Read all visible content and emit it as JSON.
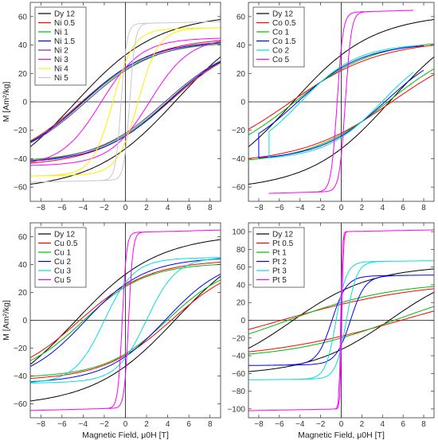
{
  "chart_data": [
    {
      "type": "line",
      "panel": "top-left",
      "xlabel": "",
      "ylabel": "M [Am²/kg]",
      "xlim": [
        -9,
        9
      ],
      "ylim": [
        -70,
        70
      ],
      "xticks": [
        -8,
        -6,
        -4,
        -2,
        0,
        2,
        4,
        6,
        8
      ],
      "yticks": [
        -60,
        -40,
        -20,
        0,
        20,
        40,
        60
      ],
      "legend_position": "top-left",
      "grid": false,
      "series": [
        {
          "name": "Dy 12",
          "color": "#000000",
          "Ms": 59,
          "Hmax": 9,
          "Hc": 4.8,
          "Mr": 33,
          "w": 0.9,
          "chi": 2.0
        },
        {
          "name": "Ni 0.5",
          "color": "#ff0000",
          "Ms": 44,
          "Hmax": 9,
          "Hc": 4.2,
          "Mr": 24,
          "w": 1.2,
          "chi": 1.0
        },
        {
          "name": "Ni 1",
          "color": "#00bb00",
          "Ms": 41,
          "Hmax": 9,
          "Hc": 4.0,
          "Mr": 23,
          "w": 1.2,
          "chi": 0.9
        },
        {
          "name": "Ni 1.5",
          "color": "#0000ff",
          "Ms": 42,
          "Hmax": 9,
          "Hc": 4.1,
          "Mr": 24,
          "w": 1.2,
          "chi": 1.0
        },
        {
          "name": "Ni 2",
          "color": "#7030a0",
          "Ms": 42,
          "Hmax": 9,
          "Hc": 3.8,
          "Mr": 22,
          "w": 1.2,
          "chi": 1.0
        },
        {
          "name": "Ni 3",
          "color": "#ff00ff",
          "Ms": 44,
          "Hmax": 9,
          "Hc": 2.3,
          "Mr": 24,
          "w": 1.0,
          "chi": 1.0
        },
        {
          "name": "Ni 4",
          "color": "#ffee00",
          "Ms": 51,
          "Hmax": 9,
          "Hc": 1.2,
          "Mr": 28,
          "w": 0.7,
          "chi": 1.2
        },
        {
          "name": "Ni 5",
          "color": "#c8c8c8",
          "Ms": 55,
          "Hmax": 9,
          "Hc": 0.4,
          "Mr": 35,
          "w": 0.4,
          "chi": 1.5
        }
      ]
    },
    {
      "type": "line",
      "panel": "top-right",
      "xlabel": "",
      "ylabel": "",
      "xlim": [
        -9,
        9
      ],
      "ylim": [
        -70,
        70
      ],
      "xticks": [
        -8,
        -6,
        -4,
        -2,
        0,
        2,
        4,
        6,
        8
      ],
      "yticks": [
        -60,
        -40,
        -20,
        0,
        20,
        40,
        60
      ],
      "legend_position": "top-left",
      "grid": false,
      "series": [
        {
          "name": "Dy 12",
          "color": "#000000",
          "Ms": 59,
          "Hmax": 9,
          "Hc": 4.8,
          "Mr": 33,
          "w": 0.9,
          "chi": 2.0
        },
        {
          "name": "Co 0.5",
          "color": "#ff0000",
          "Ms": 42,
          "Hmax": 9,
          "Hc": 5.0,
          "Mr": 22,
          "w": 1.4,
          "chi": 1.0
        },
        {
          "name": "Co 1",
          "color": "#00bb00",
          "Ms": 42,
          "Hmax": 9,
          "Hc": 4.6,
          "Mr": 23,
          "w": 1.2,
          "chi": 1.0
        },
        {
          "name": "Co 1.5",
          "color": "#0000ff",
          "Ms": 40,
          "Hmax": 8,
          "Hc": 4.3,
          "Mr": 24,
          "w": 1.1,
          "chi": 1.0
        },
        {
          "name": "Co 2",
          "color": "#00e0e0",
          "Ms": 40,
          "Hmax": 7,
          "Hc": 4.0,
          "Mr": 25,
          "w": 1.0,
          "chi": 1.0
        },
        {
          "name": "Co 5",
          "color": "#ff00ff",
          "Ms": 63,
          "Hmax": 7,
          "Hc": 0.4,
          "Mr": 38,
          "w": 0.35,
          "chi": 1.8
        }
      ]
    },
    {
      "type": "line",
      "panel": "bottom-left",
      "xlabel": "Magnetic Field, μ0H [T]",
      "ylabel": "M [Am²/kg]",
      "xlim": [
        -9,
        9
      ],
      "ylim": [
        -70,
        70
      ],
      "xticks": [
        -8,
        -6,
        -4,
        -2,
        0,
        2,
        4,
        6,
        8
      ],
      "yticks": [
        -60,
        -40,
        -20,
        0,
        20,
        40,
        60
      ],
      "legend_position": "top-left",
      "grid": false,
      "series": [
        {
          "name": "Dy 12",
          "color": "#000000",
          "Ms": 59,
          "Hmax": 9,
          "Hc": 4.8,
          "Mr": 33,
          "w": 0.9,
          "chi": 2.0
        },
        {
          "name": "Cu 0.5",
          "color": "#ff0000",
          "Ms": 42,
          "Hmax": 9,
          "Hc": 4.4,
          "Mr": 25,
          "w": 1.2,
          "chi": 1.0
        },
        {
          "name": "Cu 1",
          "color": "#00bb00",
          "Ms": 40,
          "Hmax": 9,
          "Hc": 4.0,
          "Mr": 24,
          "w": 1.2,
          "chi": 1.0
        },
        {
          "name": "Cu 2",
          "color": "#0000ff",
          "Ms": 44,
          "Hmax": 9,
          "Hc": 3.8,
          "Mr": 26,
          "w": 1.2,
          "chi": 1.0
        },
        {
          "name": "Cu 3",
          "color": "#00e0e0",
          "Ms": 44,
          "Hmax": 9,
          "Hc": 2.0,
          "Mr": 27,
          "w": 0.9,
          "chi": 1.1
        },
        {
          "name": "Cu 5",
          "color": "#ff00ff",
          "Ms": 63,
          "Hmax": 9,
          "Hc": 0.3,
          "Mr": 40,
          "w": 0.35,
          "chi": 1.8
        }
      ]
    },
    {
      "type": "line",
      "panel": "bottom-right",
      "xlabel": "Magnetic Field, μ0H [T]",
      "ylabel": "",
      "xlim": [
        -9,
        9
      ],
      "ylim": [
        -110,
        110
      ],
      "xticks": [
        -8,
        -6,
        -4,
        -2,
        0,
        2,
        4,
        6,
        8
      ],
      "yticks": [
        -100,
        -80,
        -60,
        -40,
        -20,
        0,
        20,
        40,
        60,
        80,
        100
      ],
      "legend_position": "top-left",
      "grid": false,
      "series": [
        {
          "name": "Dy 12",
          "color": "#000000",
          "Ms": 59,
          "Hmax": 9,
          "Hc": 4.8,
          "Mr": 33,
          "w": 0.9,
          "chi": 2.0
        },
        {
          "name": "Pt 0.5",
          "color": "#ff0000",
          "Ms": 43,
          "Hmax": 9,
          "Hc": 6.0,
          "Mr": 18,
          "w": 1.2,
          "chi": 1.0
        },
        {
          "name": "Pt 1",
          "color": "#00bb00",
          "Ms": 42,
          "Hmax": 9,
          "Hc": 5.3,
          "Mr": 20,
          "w": 1.1,
          "chi": 1.0
        },
        {
          "name": "Pt 2",
          "color": "#0000ff",
          "Ms": 50,
          "Hmax": 9,
          "Hc": 0.9,
          "Mr": 28,
          "w": 0.6,
          "chi": 1.0
        },
        {
          "name": "Pt 3",
          "color": "#00e0e0",
          "Ms": 66,
          "Hmax": 9,
          "Hc": 0.5,
          "Mr": 30,
          "w": 0.5,
          "chi": 1.2
        },
        {
          "name": "Pt 5",
          "color": "#ff00ff",
          "Ms": 100,
          "Hmax": 9,
          "Hc": 0.05,
          "Mr": 80,
          "w": 0.15,
          "chi": 2.0
        }
      ]
    }
  ]
}
